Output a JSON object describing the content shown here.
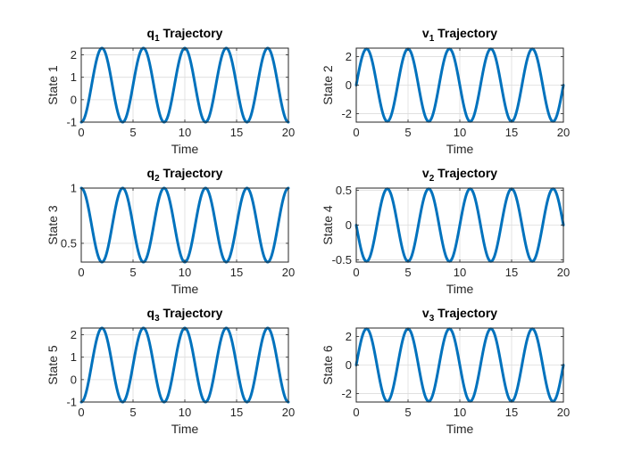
{
  "chart_data": [
    {
      "type": "line",
      "title": {
        "base": "q",
        "sub": "1",
        "rest": " Trajectory"
      },
      "xlabel": "Time",
      "ylabel": "State 1",
      "xlim": [
        0,
        20
      ],
      "ylim": [
        -1,
        2.3
      ],
      "xticks": [
        0,
        5,
        10,
        15,
        20
      ],
      "yticks": [
        -1,
        0,
        1,
        2
      ],
      "grid": true,
      "series": [
        {
          "color": "#0072BD",
          "function": "offset + amplitude*sin(omega*t + phase)",
          "offset": 0.65,
          "amplitude": 1.65,
          "omega": 1.5708,
          "phase": -1.5708,
          "t_range": [
            0,
            20
          ]
        }
      ]
    },
    {
      "type": "line",
      "title": {
        "base": "v",
        "sub": "1",
        "rest": " Trajectory"
      },
      "xlabel": "Time",
      "ylabel": "State 2",
      "xlim": [
        0,
        20
      ],
      "ylim": [
        -2.6,
        2.6
      ],
      "xticks": [
        0,
        5,
        10,
        15,
        20
      ],
      "yticks": [
        -2,
        0,
        2
      ],
      "grid": true,
      "series": [
        {
          "color": "#0072BD",
          "function": "offset + amplitude*sin(omega*t + phase)",
          "offset": 0,
          "amplitude": 2.55,
          "omega": 1.5708,
          "phase": 0,
          "t_range": [
            0,
            20
          ]
        }
      ]
    },
    {
      "type": "line",
      "title": {
        "base": "q",
        "sub": "2",
        "rest": " Trajectory"
      },
      "xlabel": "Time",
      "ylabel": "State 3",
      "xlim": [
        0,
        20
      ],
      "ylim": [
        0.33,
        1.0
      ],
      "xticks": [
        0,
        5,
        10,
        15,
        20
      ],
      "yticks": [
        0.5,
        1
      ],
      "grid": true,
      "series": [
        {
          "color": "#0072BD",
          "function": "offset + amplitude*sin(omega*t + phase)",
          "offset": 0.665,
          "amplitude": 0.335,
          "omega": 1.5708,
          "phase": 1.5708,
          "t_range": [
            0,
            20
          ]
        }
      ]
    },
    {
      "type": "line",
      "title": {
        "base": "v",
        "sub": "2",
        "rest": " Trajectory"
      },
      "xlabel": "Time",
      "ylabel": "State 4",
      "xlim": [
        0,
        20
      ],
      "ylim": [
        -0.53,
        0.53
      ],
      "xticks": [
        0,
        5,
        10,
        15,
        20
      ],
      "yticks": [
        -0.5,
        0,
        0.5
      ],
      "grid": true,
      "series": [
        {
          "color": "#0072BD",
          "function": "offset + amplitude*sin(omega*t + phase)",
          "offset": 0,
          "amplitude": 0.52,
          "omega": 1.5708,
          "phase": 3.1416,
          "t_range": [
            0,
            20
          ]
        }
      ]
    },
    {
      "type": "line",
      "title": {
        "base": "q",
        "sub": "3",
        "rest": " Trajectory"
      },
      "xlabel": "Time",
      "ylabel": "State 5",
      "xlim": [
        0,
        20
      ],
      "ylim": [
        -1,
        2.3
      ],
      "xticks": [
        0,
        5,
        10,
        15,
        20
      ],
      "yticks": [
        -1,
        0,
        1,
        2
      ],
      "grid": true,
      "series": [
        {
          "color": "#0072BD",
          "function": "offset + amplitude*sin(omega*t + phase)",
          "offset": 0.65,
          "amplitude": 1.65,
          "omega": 1.5708,
          "phase": -1.5708,
          "t_range": [
            0,
            20
          ]
        }
      ]
    },
    {
      "type": "line",
      "title": {
        "base": "v",
        "sub": "3",
        "rest": " Trajectory"
      },
      "xlabel": "Time",
      "ylabel": "State 6",
      "xlim": [
        0,
        20
      ],
      "ylim": [
        -2.6,
        2.6
      ],
      "xticks": [
        0,
        5,
        10,
        15,
        20
      ],
      "yticks": [
        -2,
        0,
        2
      ],
      "grid": true,
      "series": [
        {
          "color": "#0072BD",
          "function": "offset + amplitude*sin(omega*t + phase)",
          "offset": 0,
          "amplitude": 2.55,
          "omega": 1.5708,
          "phase": 0,
          "t_range": [
            0,
            20
          ]
        }
      ]
    }
  ]
}
